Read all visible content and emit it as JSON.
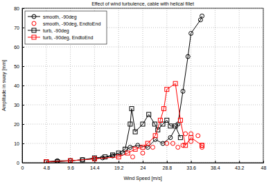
{
  "chart_data": {
    "type": "line",
    "title": "Effect of wind turbulence, cable with helical fillet",
    "x_label": "Wind Speed [m/s]",
    "y_label": "Amplitude in sway [mm]",
    "xlim": [
      0,
      48
    ],
    "ylim": [
      0,
      80
    ],
    "xticks": [
      0,
      4.8,
      9.6,
      14.4,
      19.2,
      24,
      28.8,
      33.6,
      38.4,
      43.2,
      48
    ],
    "yticks": [
      0,
      10,
      20,
      30,
      40,
      50,
      60,
      70,
      80
    ],
    "grid": true,
    "legend": "upper left",
    "series": [
      {
        "name": "smooth, -90deg",
        "color": "#000000",
        "marker": "circle",
        "line_style": "solid",
        "x": [
          4.8,
          7,
          9.6,
          12,
          14.4,
          16,
          18,
          20,
          21.5,
          23,
          25,
          26.5,
          28,
          29.5,
          31,
          32,
          33,
          33.6,
          35.5,
          35.8
        ],
        "values": [
          0.5,
          1,
          1,
          1.5,
          2,
          2.5,
          3.5,
          5,
          8,
          9,
          8,
          12,
          10,
          13,
          20,
          37,
          55,
          67,
          74,
          76
        ]
      },
      {
        "name": "smooth, -90deg, EndtoEnd",
        "color": "#ff0000",
        "marker": "circle",
        "line_style": "none",
        "x": [
          22,
          24,
          26,
          28.8,
          30,
          31,
          32,
          32.5,
          33.6,
          33.6,
          35,
          35.8,
          35.8
        ],
        "values": [
          3,
          5,
          8,
          10,
          10,
          8,
          9,
          15,
          15,
          11,
          14,
          9,
          8
        ]
      },
      {
        "name": "turb, -90deg",
        "color": "#000000",
        "marker": "square",
        "line_style": "solid",
        "x": [
          4.8,
          7,
          9.6,
          12,
          14.4,
          16.5,
          18,
          19.2,
          20.5,
          21.5,
          21.8,
          22.5,
          24,
          25.2,
          26.4,
          27,
          28,
          28.8,
          29.5,
          30.5,
          31.5
        ],
        "values": [
          0.5,
          0.5,
          1,
          1.5,
          2.5,
          3,
          4,
          5,
          7,
          20,
          28,
          16,
          20,
          25,
          20,
          17,
          20,
          22,
          19,
          19,
          13
        ]
      },
      {
        "name": "turb, -90deg, EndtoEnd",
        "color": "#ff0000",
        "marker": "square",
        "line_style": "solid",
        "x": [
          4.8,
          9.6,
          14.4,
          19.2,
          21,
          22.5,
          24,
          25,
          26.5,
          27.5,
          28.2,
          28.8,
          30.5,
          31.5,
          32.5,
          33.6,
          35.8
        ],
        "values": [
          0.5,
          1,
          2,
          3,
          5,
          7,
          8,
          10,
          14,
          22,
          28,
          38,
          41,
          22,
          9,
          13,
          9
        ]
      }
    ]
  }
}
